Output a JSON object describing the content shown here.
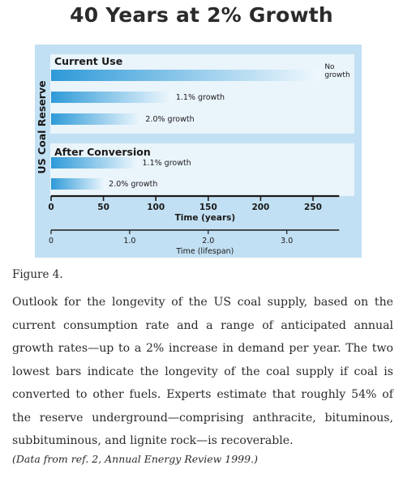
{
  "chart_data": {
    "type": "bar",
    "title": "40 Years at 2% Growth",
    "ylabel": "US Coal Reserve",
    "xlabel": "Time (years)",
    "xlim": [
      0,
      275
    ],
    "xticks": [
      0,
      50,
      100,
      150,
      200,
      250
    ],
    "secondary_axis": {
      "label": "Time (lifespan)",
      "ticks": [
        "0",
        "1.0",
        "2.0",
        "3.0"
      ],
      "tick_positions_years": [
        0,
        75,
        150,
        225
      ]
    },
    "groups": [
      {
        "name": "Current Use",
        "bars": [
          {
            "label": "No growth",
            "label_lines": [
              "No",
              "growth"
            ],
            "value": 258
          },
          {
            "label": "1.1% growth",
            "value": 116
          },
          {
            "label": "2.0% growth",
            "value": 87
          }
        ]
      },
      {
        "name": "After Conversion",
        "bars": [
          {
            "label": "1.1% growth",
            "value": 84
          },
          {
            "label": "2.0% growth",
            "value": 52
          }
        ]
      }
    ],
    "colors": {
      "panel": "#c2e0f3",
      "group_band": "#eaf4fb",
      "bar_start": "#2e9ad8",
      "bar_end": "#f0f8fd",
      "axis": "#1a1a1a"
    }
  },
  "caption": {
    "figure_label": "Figure 4.",
    "text": "Outlook for the longevity of the US coal supply, based on the current consumption rate and a range of anticipated annual growth rates—up to a 2% increase in demand per year. The two lowest bars indicate the longevity of the coal supply if coal is converted to other fuels. Experts estimate that roughly 54% of the reserve underground—comprising anthracite, bituminous, subbituminous, and lignite rock—is recoverable.",
    "source": "(Data from ref. 2, Annual Energy Review 1999.)"
  }
}
